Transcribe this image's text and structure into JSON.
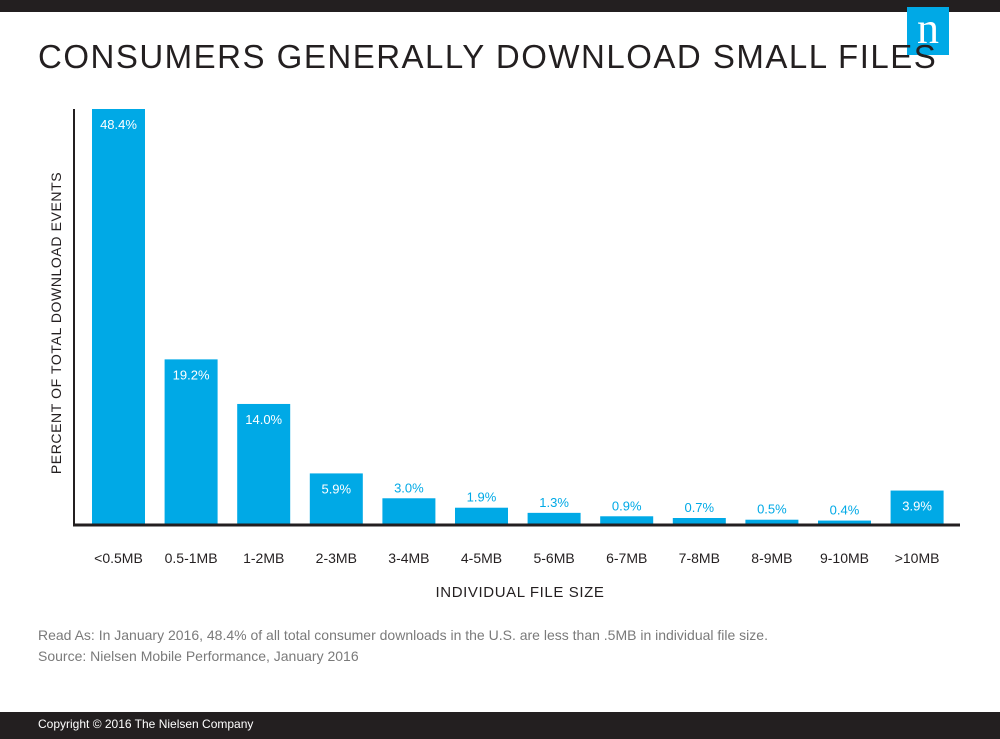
{
  "page": {
    "title": "CONSUMERS GENERALLY DOWNLOAD SMALL FILES",
    "logo_letter": "n",
    "note_read_as": "Read As: In January 2016, 48.4% of all total consumer downloads in the U.S. are less than .5MB in individual file size.",
    "note_source": "Source: Nielsen Mobile Performance, January 2016",
    "copyright": "Copyright © 2016 The Nielsen Company"
  },
  "colors": {
    "bar": "#00a9e6",
    "axis": "#231f20",
    "label_inside": "#ffffff",
    "label_outside": "#00a9e6",
    "text": "#231f20"
  },
  "chart_data": {
    "type": "bar",
    "title": "CONSUMERS GENERALLY DOWNLOAD SMALL FILES",
    "xlabel": "INDIVIDUAL FILE SIZE",
    "ylabel": "PERCENT OF TOTAL DOWNLOAD EVENTS",
    "categories": [
      "<0.5MB",
      "0.5-1MB",
      "1-2MB",
      "2-3MB",
      "3-4MB",
      "4-5MB",
      "5-6MB",
      "6-7MB",
      "7-8MB",
      "8-9MB",
      "9-10MB",
      ">10MB"
    ],
    "values": [
      48.4,
      19.2,
      14.0,
      5.9,
      3.0,
      1.9,
      1.3,
      0.9,
      0.7,
      0.5,
      0.4,
      3.9
    ],
    "value_labels": [
      "48.4%",
      "19.2%",
      "14.0%",
      "5.9%",
      "3.0%",
      "1.9%",
      "1.3%",
      "0.9%",
      "0.7%",
      "0.5%",
      "0.4%",
      "3.9%"
    ],
    "ylim": [
      0,
      48.4
    ],
    "grid": false,
    "legend": "none"
  }
}
